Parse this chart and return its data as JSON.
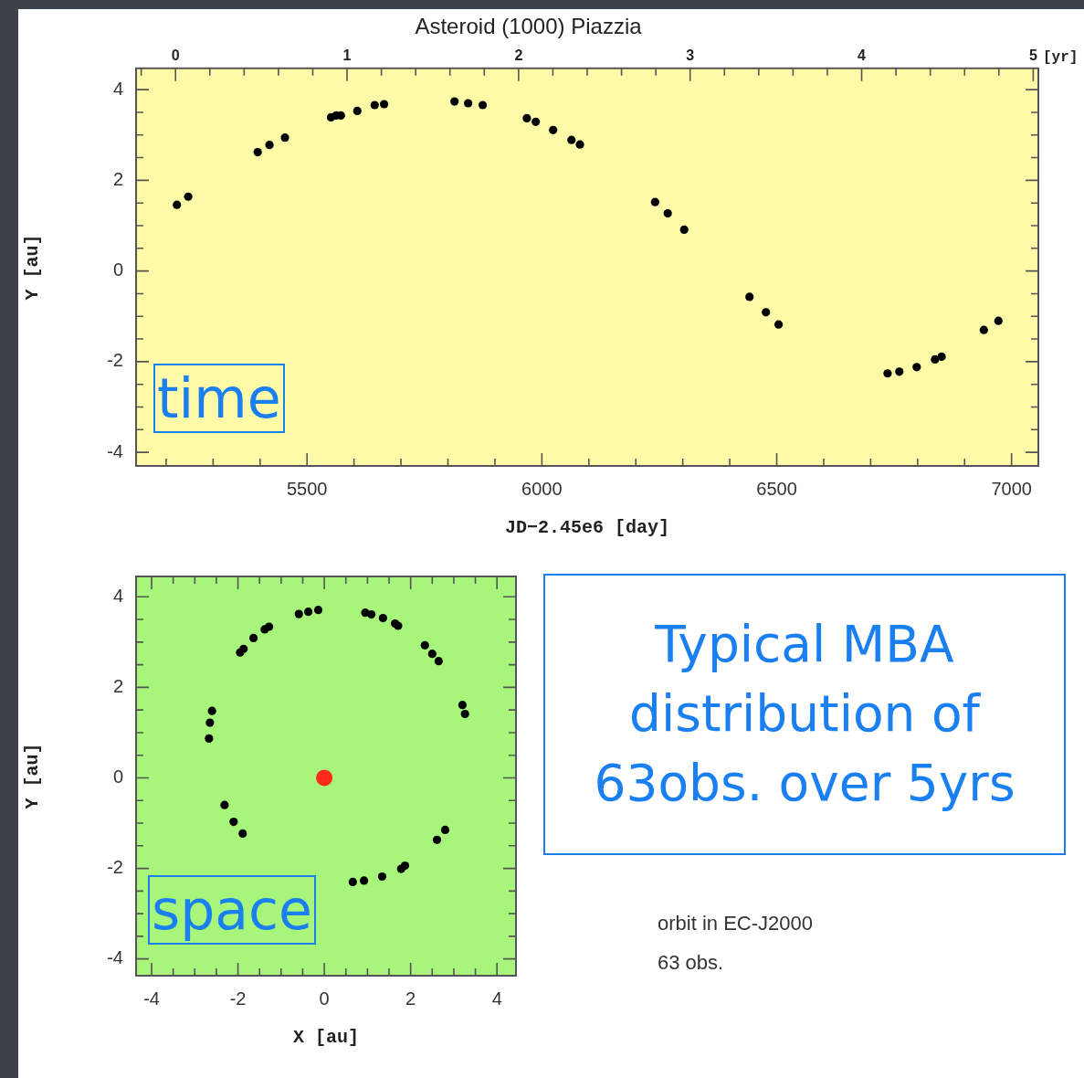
{
  "chart_data": [
    {
      "type": "scatter",
      "title": "Asteroid (1000) Piazzia",
      "xlabel": "JD−2.45e6 [day]",
      "ylabel": "Y [au]",
      "x2label": "[yr]",
      "marker": "circle",
      "legend": false,
      "xlim": [
        5136,
        7057
      ],
      "xticks": [
        5500,
        6000,
        6500,
        7000
      ],
      "x2lim": [
        -0.23,
        5.03
      ],
      "x2ticks": [
        0,
        1,
        2,
        3,
        4,
        5
      ],
      "ylim": [
        -4.3,
        4.47
      ],
      "yticks": [
        -4,
        -2,
        0,
        2,
        4
      ],
      "annotations": [
        "time"
      ],
      "series": [
        {
          "color": "#000000",
          "x": [
            5223,
            5247,
            5395,
            5420,
            5453,
            5551,
            5562,
            5572,
            5607,
            5644,
            5664,
            5814,
            5843,
            5874,
            5968,
            5987,
            6024,
            6063,
            6081,
            6241,
            6268,
            6303,
            6442,
            6477,
            6504,
            6736,
            6761,
            6798,
            6837,
            6851,
            6941,
            6972
          ],
          "values": [
            1.46,
            1.64,
            2.62,
            2.78,
            2.94,
            3.39,
            3.43,
            3.43,
            3.53,
            3.66,
            3.68,
            3.74,
            3.7,
            3.66,
            3.37,
            3.29,
            3.11,
            2.89,
            2.79,
            1.52,
            1.27,
            0.91,
            -0.57,
            -0.91,
            -1.18,
            -2.26,
            -2.22,
            -2.12,
            -1.95,
            -1.89,
            -1.3,
            -1.1
          ]
        }
      ]
    },
    {
      "type": "scatter",
      "xlabel": "X [au]",
      "ylabel": "Y [au]",
      "marker": "circle",
      "legend": false,
      "xlim": [
        -4.36,
        4.44
      ],
      "xticks": [
        -4,
        -2,
        0,
        2,
        4
      ],
      "ylim": [
        -4.37,
        4.45
      ],
      "yticks": [
        -4,
        -2,
        0,
        2,
        4
      ],
      "annotations": [
        "space",
        "orbit in EC-J2000",
        "63 obs."
      ],
      "series": [
        {
          "color": "#000000",
          "x": [
            -0.59,
            -0.37,
            -0.14,
            0.95,
            1.09,
            1.36,
            1.64,
            1.71,
            2.33,
            2.5,
            2.65,
            3.2,
            3.26,
            2.8,
            2.61,
            1.87,
            1.78,
            1.34,
            0.92,
            0.66,
            -1.89,
            -2.1,
            -2.31,
            -2.67,
            -2.65,
            -2.6,
            -1.95,
            -1.87,
            -1.64,
            -1.38,
            -1.28
          ],
          "values": [
            3.62,
            3.67,
            3.71,
            3.65,
            3.61,
            3.53,
            3.41,
            3.36,
            2.93,
            2.74,
            2.58,
            1.61,
            1.41,
            -1.15,
            -1.37,
            -1.94,
            -2.01,
            -2.18,
            -2.27,
            -2.3,
            -1.23,
            -0.97,
            -0.6,
            0.87,
            1.22,
            1.48,
            2.77,
            2.85,
            3.09,
            3.28,
            3.34
          ]
        },
        {
          "color": "#ff2a1a",
          "x": [
            0
          ],
          "values": [
            0
          ]
        }
      ]
    },
    {
      "type": "other",
      "annotations": [
        "Typical MBA distribution of 63obs. over 5yrs"
      ]
    }
  ]
}
